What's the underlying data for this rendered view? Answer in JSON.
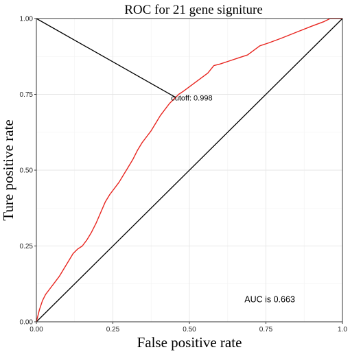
{
  "chart_data": {
    "type": "line",
    "title": "ROC for 21 gene signiture",
    "xlabel": "False positive rate",
    "ylabel": "Ture positive rate",
    "xlim": [
      0,
      1
    ],
    "ylim": [
      0,
      1
    ],
    "grid": true,
    "x_ticks": [
      "0.00",
      "0.25",
      "0.50",
      "0.75",
      "1.0"
    ],
    "y_ticks": [
      "0.00",
      "0.25",
      "0.50",
      "0.75",
      "1.00"
    ],
    "x_tick_values": [
      0,
      0.25,
      0.5,
      0.75,
      1.0
    ],
    "y_tick_values": [
      0,
      0.25,
      0.5,
      0.75,
      1.0
    ],
    "series": [
      {
        "color": "#e8251f",
        "points": [
          [
            0.0,
            0.0
          ],
          [
            0.005,
            0.02
          ],
          [
            0.01,
            0.04
          ],
          [
            0.02,
            0.07
          ],
          [
            0.03,
            0.09
          ],
          [
            0.045,
            0.11
          ],
          [
            0.06,
            0.13
          ],
          [
            0.075,
            0.15
          ],
          [
            0.09,
            0.175
          ],
          [
            0.105,
            0.2
          ],
          [
            0.12,
            0.225
          ],
          [
            0.135,
            0.24
          ],
          [
            0.15,
            0.25
          ],
          [
            0.165,
            0.27
          ],
          [
            0.18,
            0.295
          ],
          [
            0.195,
            0.325
          ],
          [
            0.21,
            0.36
          ],
          [
            0.225,
            0.395
          ],
          [
            0.24,
            0.42
          ],
          [
            0.255,
            0.44
          ],
          [
            0.27,
            0.46
          ],
          [
            0.285,
            0.485
          ],
          [
            0.3,
            0.51
          ],
          [
            0.315,
            0.535
          ],
          [
            0.33,
            0.565
          ],
          [
            0.345,
            0.59
          ],
          [
            0.36,
            0.61
          ],
          [
            0.375,
            0.63
          ],
          [
            0.39,
            0.655
          ],
          [
            0.405,
            0.68
          ],
          [
            0.42,
            0.7
          ],
          [
            0.435,
            0.72
          ],
          [
            0.45,
            0.735
          ],
          [
            0.465,
            0.75
          ],
          [
            0.48,
            0.76
          ],
          [
            0.5,
            0.775
          ],
          [
            0.52,
            0.79
          ],
          [
            0.54,
            0.805
          ],
          [
            0.56,
            0.82
          ],
          [
            0.58,
            0.845
          ],
          [
            0.6,
            0.85
          ],
          [
            0.63,
            0.86
          ],
          [
            0.66,
            0.87
          ],
          [
            0.69,
            0.88
          ],
          [
            0.71,
            0.895
          ],
          [
            0.73,
            0.91
          ],
          [
            0.76,
            0.92
          ],
          [
            0.8,
            0.935
          ],
          [
            0.85,
            0.955
          ],
          [
            0.9,
            0.975
          ],
          [
            0.94,
            0.99
          ],
          [
            0.96,
            1.0
          ],
          [
            1.0,
            1.0
          ]
        ]
      }
    ],
    "reference_line": {
      "from": [
        0,
        0
      ],
      "to": [
        1,
        1
      ],
      "color": "#000000"
    },
    "cutoff_line": {
      "from": [
        0,
        1
      ],
      "to": [
        0.455,
        0.74
      ],
      "color": "#000000"
    },
    "cutoff_label": "cutoff: 0.998",
    "cutoff_label_pos": [
      0.44,
      0.73
    ],
    "auc_label": "AUC is 0.663",
    "auc_label_pos": [
      0.68,
      0.065
    ]
  }
}
